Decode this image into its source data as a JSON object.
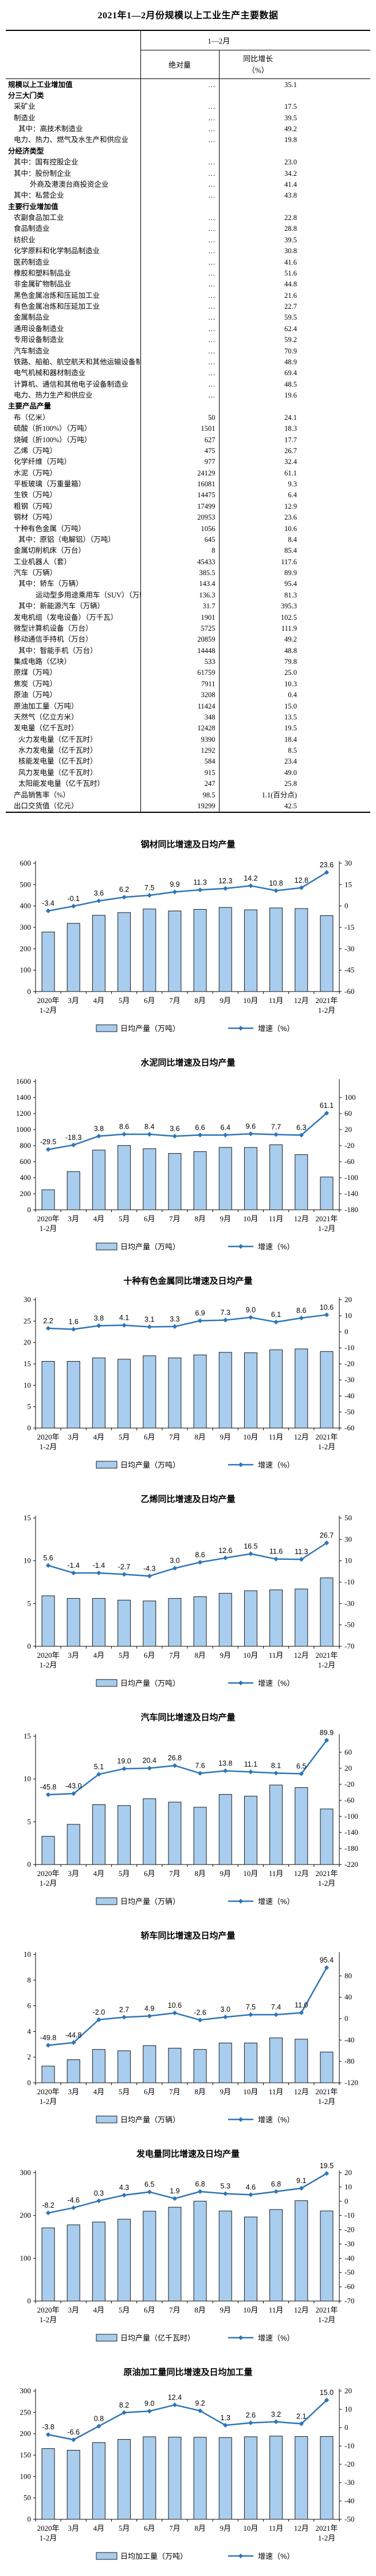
{
  "page_title": "2021年1—2月份规模以上工业生产主要数据",
  "table": {
    "period_header": "1—2月",
    "col_absolute": "绝对量",
    "col_growth": "同比增长",
    "col_growth_unit": "（%）",
    "rows": [
      {
        "label": "规模以上工业增加值",
        "indent": 4,
        "bold": true,
        "abs": "…",
        "growth": "35.1"
      },
      {
        "label": "分三大门类",
        "indent": 4,
        "bold": true,
        "abs": "",
        "growth": ""
      },
      {
        "label": "采矿业",
        "indent": 14,
        "bold": false,
        "abs": "…",
        "growth": "17.5"
      },
      {
        "label": "制造业",
        "indent": 14,
        "bold": false,
        "abs": "…",
        "growth": "39.5"
      },
      {
        "label": "其中：高技术制造业",
        "indent": 22,
        "bold": false,
        "abs": "…",
        "growth": "49.2"
      },
      {
        "label": "电力、热力、燃气及水生产和供应业",
        "indent": 14,
        "bold": false,
        "abs": "…",
        "growth": "19.8"
      },
      {
        "label": "分经济类型",
        "indent": 4,
        "bold": true,
        "abs": "",
        "growth": ""
      },
      {
        "label": "其中：国有控股企业",
        "indent": 14,
        "bold": false,
        "abs": "…",
        "growth": "23.0"
      },
      {
        "label": "其中：股份制企业",
        "indent": 14,
        "bold": false,
        "abs": "…",
        "growth": "34.2"
      },
      {
        "label": "外商及港澳台商投资企业",
        "indent": 42,
        "bold": false,
        "abs": "…",
        "growth": "41.4"
      },
      {
        "label": "其中：私营企业",
        "indent": 14,
        "bold": false,
        "abs": "…",
        "growth": "43.8"
      },
      {
        "label": "主要行业增加值",
        "indent": 4,
        "bold": true,
        "abs": "",
        "growth": ""
      },
      {
        "label": "农副食品加工业",
        "indent": 14,
        "bold": false,
        "abs": "…",
        "growth": "22.8"
      },
      {
        "label": "食品制造业",
        "indent": 14,
        "bold": false,
        "abs": "…",
        "growth": "28.8"
      },
      {
        "label": "纺织业",
        "indent": 14,
        "bold": false,
        "abs": "…",
        "growth": "39.5"
      },
      {
        "label": "化学原料和化学制品制造业",
        "indent": 14,
        "bold": false,
        "abs": "…",
        "growth": "30.8"
      },
      {
        "label": "医药制造业",
        "indent": 14,
        "bold": false,
        "abs": "…",
        "growth": "41.6"
      },
      {
        "label": "橡胶和塑料制品业",
        "indent": 14,
        "bold": false,
        "abs": "…",
        "growth": "51.6"
      },
      {
        "label": "非金属矿物制品业",
        "indent": 14,
        "bold": false,
        "abs": "…",
        "growth": "44.8"
      },
      {
        "label": "黑色金属冶炼和压延加工业",
        "indent": 14,
        "bold": false,
        "abs": "…",
        "growth": "21.6"
      },
      {
        "label": "有色金属冶炼和压延加工业",
        "indent": 14,
        "bold": false,
        "abs": "…",
        "growth": "22.7"
      },
      {
        "label": "金属制品业",
        "indent": 14,
        "bold": false,
        "abs": "…",
        "growth": "59.5"
      },
      {
        "label": "通用设备制造业",
        "indent": 14,
        "bold": false,
        "abs": "…",
        "growth": "62.4"
      },
      {
        "label": "专用设备制造业",
        "indent": 14,
        "bold": false,
        "abs": "…",
        "growth": "59.2"
      },
      {
        "label": "汽车制造业",
        "indent": 14,
        "bold": false,
        "abs": "…",
        "growth": "70.9"
      },
      {
        "label": "铁路、船舶、航空航天和其他运输设备制造业",
        "indent": 14,
        "bold": false,
        "abs": "…",
        "growth": "48.9"
      },
      {
        "label": "电气机械和器材制造业",
        "indent": 14,
        "bold": false,
        "abs": "…",
        "growth": "69.4"
      },
      {
        "label": "计算机、通信和其他电子设备制造业",
        "indent": 14,
        "bold": false,
        "abs": "…",
        "growth": "48.5"
      },
      {
        "label": "电力、热力生产和供应业",
        "indent": 14,
        "bold": false,
        "abs": "…",
        "growth": "19.6"
      },
      {
        "label": "主要产品产量",
        "indent": 4,
        "bold": true,
        "abs": "",
        "growth": ""
      },
      {
        "label": "布（亿米）",
        "indent": 14,
        "bold": false,
        "abs": "50",
        "growth": "24.1"
      },
      {
        "label": "硫酸（折100%）（万吨）",
        "indent": 14,
        "bold": false,
        "abs": "1501",
        "growth": "18.3"
      },
      {
        "label": "烧碱（折100%）（万吨）",
        "indent": 14,
        "bold": false,
        "abs": "627",
        "growth": "17.7"
      },
      {
        "label": "乙烯（万吨）",
        "indent": 14,
        "bold": false,
        "abs": "475",
        "growth": "26.7"
      },
      {
        "label": "化学纤维（万吨）",
        "indent": 14,
        "bold": false,
        "abs": "977",
        "growth": "32.4"
      },
      {
        "label": "水泥（万吨）",
        "indent": 14,
        "bold": false,
        "abs": "24129",
        "growth": "61.1"
      },
      {
        "label": "平板玻璃（万重量箱）",
        "indent": 14,
        "bold": false,
        "abs": "16081",
        "growth": "9.3"
      },
      {
        "label": "生铁（万吨）",
        "indent": 14,
        "bold": false,
        "abs": "14475",
        "growth": "6.4"
      },
      {
        "label": "粗钢（万吨）",
        "indent": 14,
        "bold": false,
        "abs": "17499",
        "growth": "12.9"
      },
      {
        "label": "钢材（万吨）",
        "indent": 14,
        "bold": false,
        "abs": "20953",
        "growth": "23.6"
      },
      {
        "label": "十种有色金属（万吨）",
        "indent": 14,
        "bold": false,
        "abs": "1056",
        "growth": "10.6"
      },
      {
        "label": "其中：原铝（电解铝）（万吨）",
        "indent": 22,
        "bold": false,
        "abs": "645",
        "growth": "8.4"
      },
      {
        "label": "金属切削机床（万台）",
        "indent": 14,
        "bold": false,
        "abs": "8",
        "growth": "85.4"
      },
      {
        "label": "工业机器人（套）",
        "indent": 14,
        "bold": false,
        "abs": "45433",
        "growth": "117.6"
      },
      {
        "label": "汽车（万辆）",
        "indent": 14,
        "bold": false,
        "abs": "385.5",
        "growth": "89.9"
      },
      {
        "label": "其中：轿车（万辆）",
        "indent": 22,
        "bold": false,
        "abs": "143.4",
        "growth": "95.4"
      },
      {
        "label": "运动型多用途乘用车（SUV）（万辆）",
        "indent": 52,
        "bold": false,
        "abs": "136.3",
        "growth": "81.3"
      },
      {
        "label": "其中：新能源汽车（万辆）",
        "indent": 22,
        "bold": false,
        "abs": "31.7",
        "growth": "395.3"
      },
      {
        "label": "发电机组（发电设备）（万千瓦）",
        "indent": 14,
        "bold": false,
        "abs": "1901",
        "growth": "102.5"
      },
      {
        "label": "微型计算机设备（万台）",
        "indent": 14,
        "bold": false,
        "abs": "5725",
        "growth": "111.9"
      },
      {
        "label": "移动通信手持机（万台）",
        "indent": 14,
        "bold": false,
        "abs": "20859",
        "growth": "49.2"
      },
      {
        "label": "其中：智能手机（万台）",
        "indent": 22,
        "bold": false,
        "abs": "14448",
        "growth": "48.8"
      },
      {
        "label": "集成电路（亿块）",
        "indent": 14,
        "bold": false,
        "abs": "533",
        "growth": "79.8"
      },
      {
        "label": "原煤（万吨）",
        "indent": 14,
        "bold": false,
        "abs": "61759",
        "growth": "25.0"
      },
      {
        "label": "焦炭（万吨）",
        "indent": 14,
        "bold": false,
        "abs": "7911",
        "growth": "10.3"
      },
      {
        "label": "原油（万吨）",
        "indent": 14,
        "bold": false,
        "abs": "3208",
        "growth": "0.4"
      },
      {
        "label": "原油加工量（万吨）",
        "indent": 14,
        "bold": false,
        "abs": "11424",
        "growth": "15.0"
      },
      {
        "label": "天然气（亿立方米）",
        "indent": 14,
        "bold": false,
        "abs": "348",
        "growth": "13.5"
      },
      {
        "label": "发电量（亿千瓦时）",
        "indent": 14,
        "bold": false,
        "abs": "12428",
        "growth": "19.5"
      },
      {
        "label": "火力发电量（亿千瓦时）",
        "indent": 22,
        "bold": false,
        "abs": "9390",
        "growth": "18.4"
      },
      {
        "label": "水力发电量（亿千瓦时）",
        "indent": 22,
        "bold": false,
        "abs": "1292",
        "growth": "8.5"
      },
      {
        "label": "核能发电量（亿千瓦时）",
        "indent": 22,
        "bold": false,
        "abs": "584",
        "growth": "23.4"
      },
      {
        "label": "风力发电量（亿千瓦时）",
        "indent": 22,
        "bold": false,
        "abs": "915",
        "growth": "49.0"
      },
      {
        "label": "太阳能发电量（亿千瓦时）",
        "indent": 22,
        "bold": false,
        "abs": "247",
        "growth": "25.8"
      },
      {
        "label": "产品销售率（%）",
        "indent": 14,
        "bold": false,
        "abs": "98.5",
        "growth": "1.1(百分点)"
      },
      {
        "label": "出口交货值（亿元）",
        "indent": 14,
        "bold": false,
        "abs": "19299",
        "growth": "42.5"
      }
    ]
  },
  "colors": {
    "bar_fill": "#A8CDEE",
    "bar_stroke": "#1a1a1a",
    "line": "#2E75B6",
    "axis": "#000000",
    "text": "#000000"
  },
  "chart_data": [
    {
      "type": "bar+line",
      "slug": "steel",
      "title": "钢材同比增速及日均产量",
      "bar_legend": "日均产量（万吨）",
      "line_legend": "增速（%）",
      "categories": [
        "2020年\n1-2月",
        "3月",
        "4月",
        "5月",
        "6月",
        "7月",
        "8月",
        "9月",
        "10月",
        "11月",
        "12月",
        "2021年\n1-2月"
      ],
      "bars": [
        278.5,
        319.0,
        356.7,
        369.4,
        386.2,
        377.0,
        384.3,
        393.5,
        382.2,
        391.1,
        388.2,
        355.1
      ],
      "line": [
        -3.4,
        -0.1,
        3.6,
        6.2,
        7.5,
        9.9,
        11.3,
        12.3,
        14.2,
        10.8,
        12.8,
        23.6
      ],
      "left_axis": {
        "min": 0,
        "max": 600,
        "ticks": [
          600,
          500,
          400,
          300,
          200,
          100,
          0
        ]
      },
      "right_axis": {
        "min": -60,
        "max": 30,
        "ticks": [
          30,
          15,
          0,
          -15,
          -30,
          -45,
          -60
        ]
      }
    },
    {
      "type": "bar+line",
      "slug": "cement",
      "title": "水泥同比增速及日均产量",
      "bar_legend": "日均产量（万吨）",
      "line_legend": "增速（%）",
      "categories": [
        "2020年\n1-2月",
        "3月",
        "4月",
        "5月",
        "6月",
        "7月",
        "8月",
        "9月",
        "10月",
        "11月",
        "12月",
        "2021年\n1-2月"
      ],
      "bars": [
        249.7,
        476.9,
        744.9,
        802.2,
        762.2,
        703.0,
        725.5,
        778.0,
        777.4,
        811.0,
        688.2,
        409.0
      ],
      "line": [
        -29.5,
        -18.3,
        3.8,
        8.6,
        8.4,
        3.6,
        6.6,
        6.4,
        9.6,
        7.7,
        6.3,
        61.1
      ],
      "left_axis": {
        "min": 0,
        "max": 1600,
        "ticks": [
          1600,
          1400,
          1200,
          1000,
          800,
          600,
          400,
          200,
          0
        ]
      },
      "right_axis": {
        "min": -180,
        "max": 140,
        "ticks": [
          100,
          60,
          20,
          -20,
          -60,
          -100,
          -140,
          -180
        ]
      }
    },
    {
      "type": "bar+line",
      "slug": "nonferrous-metals",
      "title": "十种有色金属同比增速及日均产量",
      "bar_legend": "日均产量（万吨）",
      "line_legend": "增速（%）",
      "categories": [
        "2020年\n1-2月",
        "3月",
        "4月",
        "5月",
        "6月",
        "7月",
        "8月",
        "9月",
        "10月",
        "11月",
        "12月",
        "2021年\n1-2月"
      ],
      "bars": [
        15.6,
        15.6,
        16.4,
        16.1,
        16.9,
        16.4,
        17.1,
        17.7,
        17.6,
        18.3,
        18.5,
        17.9
      ],
      "line": [
        2.2,
        1.6,
        3.8,
        4.1,
        3.1,
        3.3,
        6.9,
        7.3,
        9.0,
        6.1,
        8.6,
        10.6
      ],
      "left_axis": {
        "min": 0,
        "max": 30,
        "ticks": [
          30,
          25,
          20,
          15,
          10,
          5,
          0
        ]
      },
      "right_axis": {
        "min": -60,
        "max": 20,
        "ticks": [
          20,
          10,
          0,
          -10,
          -20,
          -30,
          -40,
          -50,
          -60
        ]
      }
    },
    {
      "type": "bar+line",
      "slug": "ethylene",
      "title": "乙烯同比增速及日均产量",
      "bar_legend": "日均产量（万吨）",
      "line_legend": "增速（%）",
      "categories": [
        "2020年\n1-2月",
        "3月",
        "4月",
        "5月",
        "6月",
        "7月",
        "8月",
        "9月",
        "10月",
        "11月",
        "12月",
        "2021年\n1-2月"
      ],
      "bars": [
        5.9,
        5.6,
        5.6,
        5.4,
        5.3,
        5.6,
        5.8,
        6.2,
        6.5,
        6.6,
        6.7,
        8.0
      ],
      "line": [
        5.6,
        -1.4,
        -1.4,
        -2.7,
        -4.3,
        3.0,
        8.6,
        12.6,
        16.5,
        11.6,
        11.3,
        26.7
      ],
      "left_axis": {
        "min": 0,
        "max": 15,
        "ticks": [
          15,
          10,
          5,
          0
        ]
      },
      "right_axis": {
        "min": -70,
        "max": 50,
        "ticks": [
          50,
          30,
          10,
          -10,
          -30,
          -50,
          -70
        ]
      }
    },
    {
      "type": "bar+line",
      "slug": "automobiles",
      "title": "汽车同比增速及日均产量",
      "bar_legend": "日均产量（万辆）",
      "line_legend": "增速（%）",
      "categories": [
        "2020年\n1-2月",
        "3月",
        "4月",
        "5月",
        "6月",
        "7月",
        "8月",
        "9月",
        "10月",
        "11月",
        "12月",
        "2021年\n1-2月"
      ],
      "bars": [
        3.3,
        4.7,
        7.0,
        6.9,
        7.7,
        7.3,
        6.7,
        8.2,
        8.0,
        9.3,
        9.0,
        6.5
      ],
      "line": [
        -45.8,
        -43.0,
        5.1,
        19.0,
        20.4,
        26.8,
        7.6,
        13.8,
        11.1,
        8.1,
        6.5,
        89.9
      ],
      "left_axis": {
        "min": 0,
        "max": 15,
        "ticks": [
          15,
          10,
          5,
          0
        ]
      },
      "right_axis": {
        "min": -220,
        "max": 100,
        "ticks": [
          60,
          20,
          -20,
          -60,
          -100,
          -140,
          -180,
          -220
        ]
      }
    },
    {
      "type": "bar+line",
      "slug": "sedans",
      "title": "轿车同比增速及日均产量",
      "bar_legend": "日均产量（万辆）",
      "line_legend": "增速（%）",
      "categories": [
        "2020年\n1-2月",
        "3月",
        "4月",
        "5月",
        "6月",
        "7月",
        "8月",
        "9月",
        "10月",
        "11月",
        "12月",
        "2021年\n1-2月"
      ],
      "bars": [
        1.3,
        1.8,
        2.6,
        2.5,
        2.9,
        2.7,
        2.6,
        3.1,
        3.1,
        3.5,
        3.4,
        2.4
      ],
      "line": [
        -49.8,
        -44.8,
        -2.0,
        2.7,
        4.9,
        10.6,
        -2.6,
        3.0,
        7.5,
        7.4,
        11.0,
        95.4
      ],
      "left_axis": {
        "min": 0,
        "max": 10,
        "ticks": [
          10,
          8,
          6,
          4,
          2,
          0
        ]
      },
      "right_axis": {
        "min": -120,
        "max": 120,
        "ticks": [
          80,
          40,
          0,
          -40,
          -80,
          -120
        ]
      }
    },
    {
      "type": "bar+line",
      "slug": "electricity",
      "title": "发电量同比增速及日均产量",
      "bar_legend": "日均产量（亿千瓦时）",
      "line_legend": "增速（%）",
      "categories": [
        "2020年\n1-2月",
        "3月",
        "4月",
        "5月",
        "6月",
        "7月",
        "8月",
        "9月",
        "10月",
        "11月",
        "12月",
        "2021年\n1-2月"
      ],
      "bars": [
        171.1,
        178.2,
        184.8,
        191.4,
        210.1,
        219.4,
        233.5,
        210.5,
        196.6,
        214.0,
        234.7,
        210.6
      ],
      "line": [
        -8.2,
        -4.6,
        0.3,
        4.3,
        6.5,
        1.9,
        6.8,
        5.3,
        4.6,
        6.8,
        9.1,
        19.5
      ],
      "left_axis": {
        "min": 0,
        "max": 300,
        "ticks": [
          300,
          200,
          100,
          0
        ]
      },
      "right_axis": {
        "min": -70,
        "max": 20,
        "ticks": [
          20,
          10,
          0,
          -10,
          -20,
          -30,
          -40,
          -50,
          -60,
          -70
        ]
      }
    },
    {
      "type": "bar+line",
      "slug": "crude-oil-processing",
      "title": "原油加工量同比增速及日均加工量",
      "bar_legend": "日均加工量（万吨）",
      "line_legend": "增速（%）",
      "categories": [
        "2020年\n1-2月",
        "3月",
        "4月",
        "5月",
        "6月",
        "7月",
        "8月",
        "9月",
        "10月",
        "11月",
        "12月",
        "2021年\n1-2月"
      ],
      "bars": [
        165.3,
        161.4,
        179.5,
        186.8,
        192.9,
        192.1,
        191.9,
        191.2,
        193.0,
        194.5,
        193.5,
        193.6
      ],
      "line": [
        -3.8,
        -6.6,
        0.8,
        8.2,
        9.0,
        12.4,
        9.2,
        1.3,
        2.6,
        3.2,
        2.1,
        15.0
      ],
      "left_axis": {
        "min": 0,
        "max": 300,
        "ticks": [
          300,
          250,
          200,
          150,
          100,
          50,
          0
        ]
      },
      "right_axis": {
        "min": -50,
        "max": 20,
        "ticks": [
          20,
          10,
          0,
          -10,
          -20,
          -30,
          -40,
          -50
        ]
      }
    }
  ]
}
